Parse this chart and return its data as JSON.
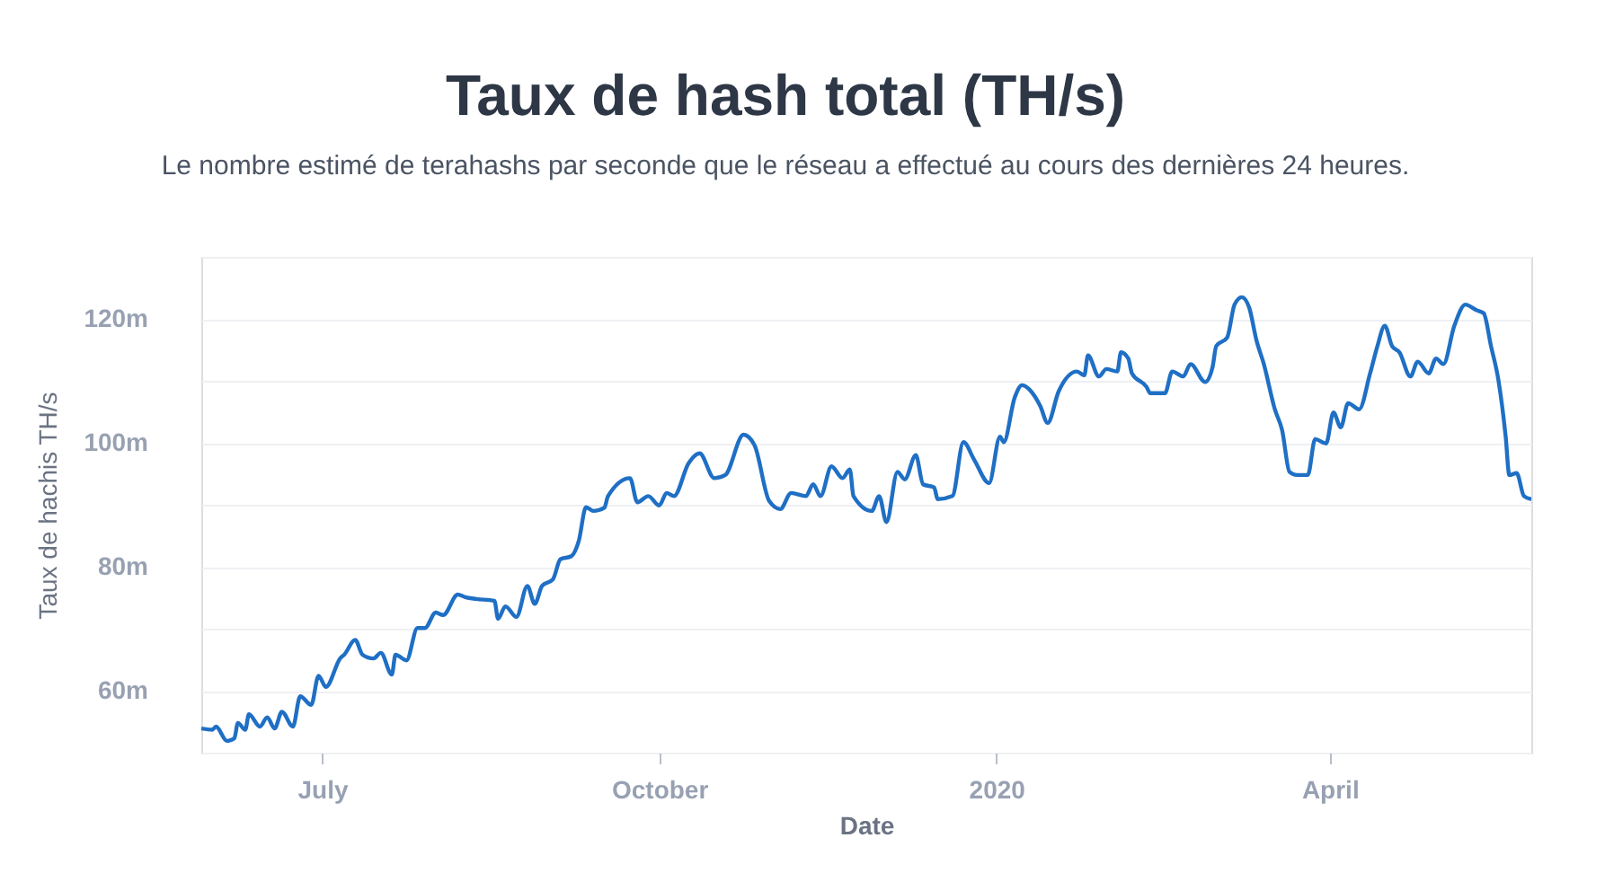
{
  "chart_data": {
    "type": "line",
    "title": "Taux de hash total (TH/s)",
    "subtitle": "Le nombre estimé de terahashs par seconde que le réseau a effectué au cours des dernières 24 heures.",
    "xlabel": "Date",
    "ylabel": "Taux de hachis TH/s",
    "x": [
      "2019-05-29",
      "2019-06-01",
      "2019-06-02",
      "2019-06-05",
      "2019-06-07",
      "2019-06-08",
      "2019-06-10",
      "2019-06-11",
      "2019-06-14",
      "2019-06-16",
      "2019-06-18",
      "2019-06-20",
      "2019-06-23",
      "2019-06-25",
      "2019-06-28",
      "2019-06-30",
      "2019-07-02",
      "2019-07-06",
      "2019-07-07",
      "2019-07-10",
      "2019-07-12",
      "2019-07-15",
      "2019-07-17",
      "2019-07-20",
      "2019-07-21",
      "2019-07-24",
      "2019-07-27",
      "2019-07-29",
      "2019-08-01",
      "2019-08-03",
      "2019-08-07",
      "2019-08-09",
      "2019-08-12",
      "2019-08-17",
      "2019-08-18",
      "2019-08-20",
      "2019-08-23",
      "2019-08-26",
      "2019-08-28",
      "2019-08-30",
      "2019-09-02",
      "2019-09-04",
      "2019-09-07",
      "2019-09-09",
      "2019-09-11",
      "2019-09-13",
      "2019-09-16",
      "2019-09-17",
      "2019-09-23",
      "2019-09-25",
      "2019-09-28",
      "2019-10-01",
      "2019-10-03",
      "2019-10-05",
      "2019-10-09",
      "2019-10-12",
      "2019-10-16",
      "2019-10-19",
      "2019-10-24",
      "2019-10-27",
      "2019-10-31",
      "2019-11-03",
      "2019-11-06",
      "2019-11-10",
      "2019-11-12",
      "2019-11-14",
      "2019-11-17",
      "2019-11-20",
      "2019-11-22",
      "2019-11-23",
      "2019-11-28",
      "2019-11-30",
      "2019-12-02",
      "2019-12-05",
      "2019-12-07",
      "2019-12-10",
      "2019-12-12",
      "2019-12-15",
      "2019-12-16",
      "2019-12-20",
      "2019-12-23",
      "2019-12-26",
      "2019-12-30",
      "2020-01-02",
      "2020-01-03",
      "2020-01-06",
      "2020-01-08",
      "2020-01-10",
      "2020-01-13",
      "2020-01-15",
      "2020-01-18",
      "2020-01-23",
      "2020-01-25",
      "2020-01-26",
      "2020-01-29",
      "2020-01-31",
      "2020-02-03",
      "2020-02-04",
      "2020-02-06",
      "2020-02-07",
      "2020-02-11",
      "2020-02-12",
      "2020-02-16",
      "2020-02-18",
      "2020-02-21",
      "2020-02-23",
      "2020-02-27",
      "2020-02-29",
      "2020-03-01",
      "2020-03-04",
      "2020-03-06",
      "2020-03-08",
      "2020-03-10",
      "2020-03-12",
      "2020-03-14",
      "2020-03-17",
      "2020-03-19",
      "2020-03-21",
      "2020-03-23",
      "2020-03-26",
      "2020-03-28",
      "2020-03-31",
      "2020-04-02",
      "2020-04-04",
      "2020-04-06",
      "2020-04-09",
      "2020-04-12",
      "2020-04-14",
      "2020-04-16",
      "2020-04-18",
      "2020-04-20",
      "2020-04-23",
      "2020-04-25",
      "2020-04-28",
      "2020-04-30",
      "2020-05-02",
      "2020-05-05",
      "2020-05-08",
      "2020-05-11",
      "2020-05-13",
      "2020-05-15",
      "2020-05-17",
      "2020-05-19",
      "2020-05-20",
      "2020-05-22",
      "2020-05-24",
      "2020-05-26"
    ],
    "series": [
      {
        "color": "#1f6fc5",
        "values": [
          53.9,
          53.7,
          54.2,
          51.9,
          52.3,
          54.8,
          53.7,
          56.2,
          54.2,
          55.7,
          53.9,
          56.6,
          54.2,
          59.1,
          57.7,
          62.4,
          60.6,
          65.3,
          65.8,
          68.2,
          65.8,
          65.2,
          66.1,
          62.6,
          65.8,
          64.9,
          70.1,
          70.1,
          72.6,
          72.2,
          75.5,
          75.1,
          74.8,
          74.5,
          71.6,
          73.6,
          71.9,
          76.9,
          74.0,
          76.9,
          78.0,
          81.2,
          81.7,
          84.1,
          89.6,
          89.0,
          89.5,
          91.4,
          94.3,
          90.4,
          91.4,
          89.9,
          91.9,
          91.4,
          96.7,
          98.3,
          94.3,
          94.8,
          101.3,
          99.6,
          90.6,
          89.3,
          91.9,
          91.4,
          93.3,
          91.4,
          96.2,
          94.3,
          95.7,
          91.4,
          89.0,
          91.4,
          87.2,
          95.3,
          94.1,
          98.0,
          93.3,
          92.8,
          90.9,
          91.4,
          100.1,
          97.2,
          93.5,
          101.0,
          100.1,
          107.3,
          109.3,
          108.6,
          105.9,
          103.2,
          108.3,
          111.5,
          110.9,
          114.1,
          110.7,
          111.9,
          111.5,
          114.6,
          113.6,
          111.2,
          109.0,
          108.0,
          108.0,
          111.5,
          110.7,
          112.7,
          109.8,
          112.2,
          115.6,
          117.0,
          122.3,
          123.5,
          121.8,
          116.5,
          112.7,
          105.4,
          102.0,
          95.3,
          94.8,
          94.8,
          100.6,
          99.9,
          104.9,
          102.5,
          106.4,
          105.4,
          111.2,
          115.6,
          118.9,
          115.6,
          114.6,
          110.7,
          113.1,
          111.2,
          113.6,
          112.7,
          118.9,
          122.3,
          121.4,
          120.9,
          115.6,
          110.2,
          101.0,
          94.8,
          95.1,
          91.4,
          90.9
        ]
      }
    ],
    "xlim": [
      "2019-05-29",
      "2020-05-26"
    ],
    "xticks": [
      {
        "value": "2019-07-01",
        "label": "July"
      },
      {
        "value": "2019-10-01",
        "label": "October"
      },
      {
        "value": "2020-01-01",
        "label": "2020"
      },
      {
        "value": "2020-04-01",
        "label": "April"
      }
    ],
    "ylim": [
      50,
      130
    ],
    "yticks": [
      {
        "value": 50,
        "label": null
      },
      {
        "value": 60,
        "label": "60m"
      },
      {
        "value": 70,
        "label": null
      },
      {
        "value": 80,
        "label": "80m"
      },
      {
        "value": 90,
        "label": null
      },
      {
        "value": 100,
        "label": "100m"
      },
      {
        "value": 110,
        "label": null
      },
      {
        "value": 120,
        "label": "120m"
      },
      {
        "value": 130,
        "label": null
      }
    ],
    "grid": "y"
  }
}
